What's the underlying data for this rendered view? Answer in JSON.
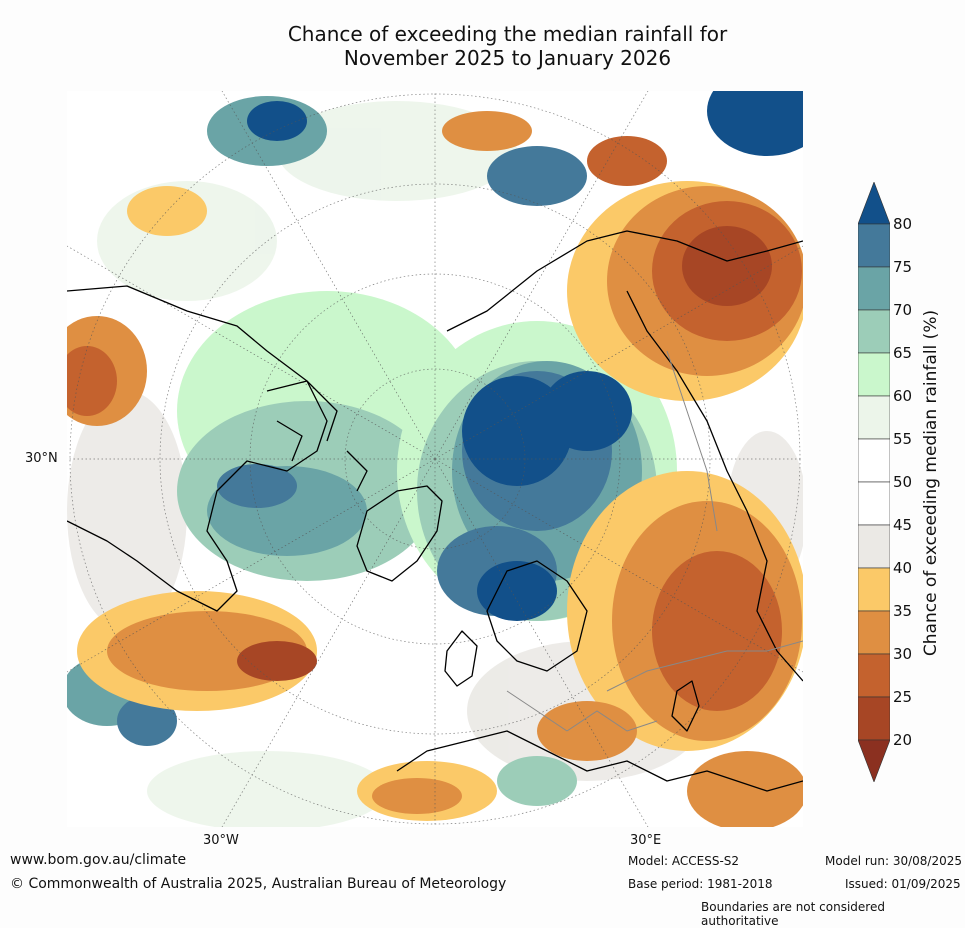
{
  "title": {
    "line1": "Chance of exceeding the median rainfall for",
    "line2": "November 2025 to January 2026"
  },
  "map": {
    "lat_label": "30°N",
    "lon_labels": [
      "30°W",
      "30°E"
    ]
  },
  "colorbar": {
    "label": "Chance of exceeding median rainfall (%)",
    "ticks": [
      "80",
      "75",
      "70",
      "65",
      "60",
      "55",
      "50",
      "45",
      "40",
      "35",
      "30",
      "25",
      "20"
    ],
    "colors": {
      "above_80": "#12508a",
      "75_80": "#44799a",
      "70_75": "#6aa4a6",
      "65_70": "#9ccdb8",
      "60_65": "#caf7cc",
      "55_60": "#ecf5ea",
      "50_55": "#ffffff",
      "45_50": "#ffffff",
      "40_45": "#ebe9e5",
      "35_40": "#fbc968",
      "30_35": "#df8f42",
      "25_30": "#c4622e",
      "20_25": "#a74625",
      "below_20": "#8b3020"
    }
  },
  "footer": {
    "website": "www.bom.gov.au/climate",
    "copyright": "© Commonwealth of Australia 2025, Australian Bureau of Meteorology",
    "model": "Model: ACCESS-S2",
    "base_period": "Base period: 1981-2018",
    "model_run": "Model run: 30/08/2025",
    "issued": "Issued: 01/09/2025",
    "disclaimer": "Boundaries are not considered authoritative"
  }
}
